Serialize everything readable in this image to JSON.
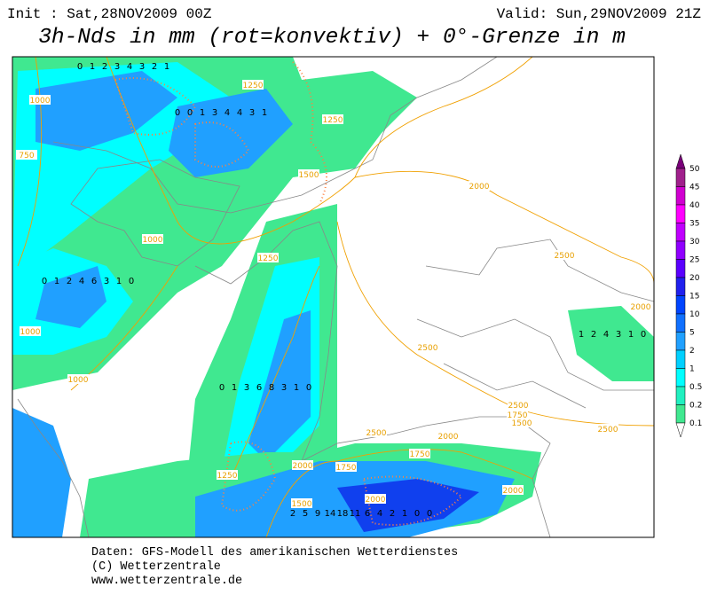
{
  "header": {
    "init": "Init : Sat,28NOV2009 00Z",
    "valid": "Valid: Sun,29NOV2009 21Z",
    "title": "3h-Nds in mm (rot=konvektiv) + 0°-Grenze in m"
  },
  "colorbar": {
    "labels": [
      50,
      45,
      40,
      35,
      30,
      25,
      20,
      15,
      10,
      5,
      2,
      1,
      0.5,
      0.2,
      0.1
    ],
    "colors": [
      "#7a007a",
      "#a0208c",
      "#d000d0",
      "#ff00ff",
      "#c000ff",
      "#9000ff",
      "#5a00ff",
      "#2020ee",
      "#0044ff",
      "#1070ff",
      "#20a0ff",
      "#00d0ff",
      "#00ffff",
      "#20f0c0",
      "#40e890"
    ]
  },
  "contour_labels": [
    1250,
    1250,
    1500,
    2000,
    1000,
    1250,
    2500,
    2000,
    1000,
    2500,
    1000,
    2500,
    1750,
    1500,
    2000,
    2500,
    2500,
    1750,
    2000,
    1750,
    1250,
    2000,
    2000,
    1500,
    1000,
    750
  ],
  "precip_points": [
    0,
    1,
    2,
    3,
    4,
    3,
    2,
    1,
    0,
    0,
    1,
    3,
    4,
    4,
    3,
    1,
    0,
    1,
    2,
    4,
    6,
    3,
    1,
    0,
    0,
    1,
    3,
    6,
    8,
    3,
    1,
    0,
    2,
    5,
    9,
    14,
    18,
    11,
    6,
    4,
    2,
    1,
    0,
    0,
    1,
    2,
    4,
    3,
    1,
    0
  ],
  "footer": [
    "Daten: GFS-Modell des amerikanischen Wetterdienstes",
    "(C) Wetterzentrale",
    "www.wetterzentrale.de"
  ]
}
